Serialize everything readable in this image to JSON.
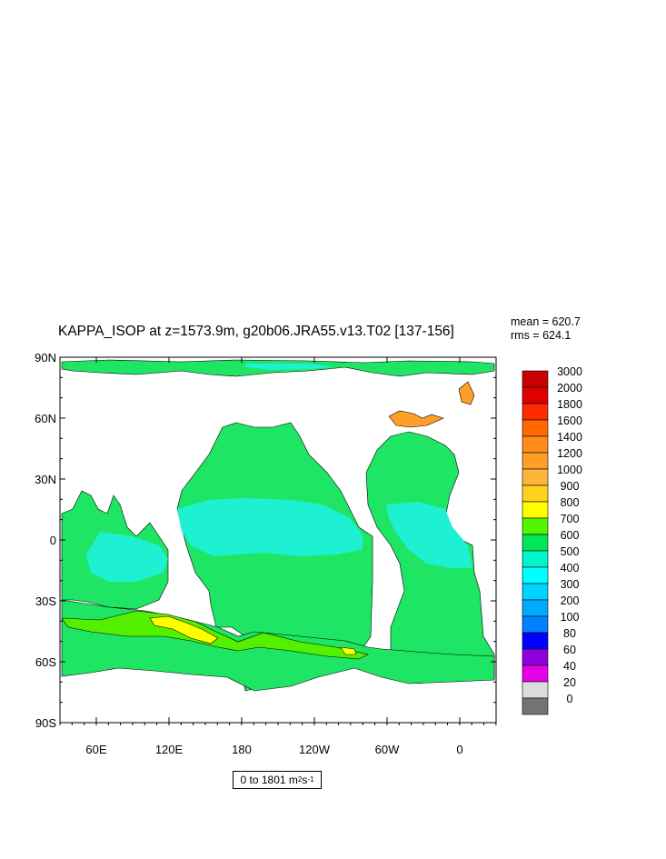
{
  "title": "KAPPA_ISOP at z=1573.9m, g20b06.JRA55.v13.T02 [137-156]",
  "stats": {
    "mean": "mean = 620.7",
    "rms": "rms = 624.1"
  },
  "range": {
    "prefix": "0 to 1801 m",
    "sup1": "2",
    "mid": " s",
    "sup2": "-1"
  },
  "axes": {
    "y_ticks": [
      "90N",
      "60N",
      "30N",
      "0",
      "30S",
      "60S",
      "90S"
    ],
    "x_ticks": [
      "60E",
      "120E",
      "180",
      "120W",
      "60W",
      "0"
    ]
  },
  "colorbar": {
    "labels": [
      "3000",
      "2000",
      "1800",
      "1600",
      "1400",
      "1200",
      "1000",
      "900",
      "800",
      "700",
      "600",
      "500",
      "400",
      "300",
      "200",
      "100",
      "80",
      "60",
      "40",
      "20",
      "0"
    ],
    "colors": [
      "#c80000",
      "#e10000",
      "#ff2a00",
      "#ff6a00",
      "#ff8c1a",
      "#ff9f2a",
      "#ffb43c",
      "#ffd21e",
      "#ffff00",
      "#55f500",
      "#00e65a",
      "#00f5c8",
      "#00ffff",
      "#00d2ff",
      "#00aaff",
      "#0082ff",
      "#0000ff",
      "#8c00dc",
      "#e600e6",
      "#dcdcdc",
      "#737373"
    ]
  },
  "colors": {
    "green_700": "#1ee664",
    "cyan_500": "#1ef0d2",
    "yellow_800": "#ffff00",
    "lime_700": "#55f000",
    "orange": "#ff9f2a"
  }
}
